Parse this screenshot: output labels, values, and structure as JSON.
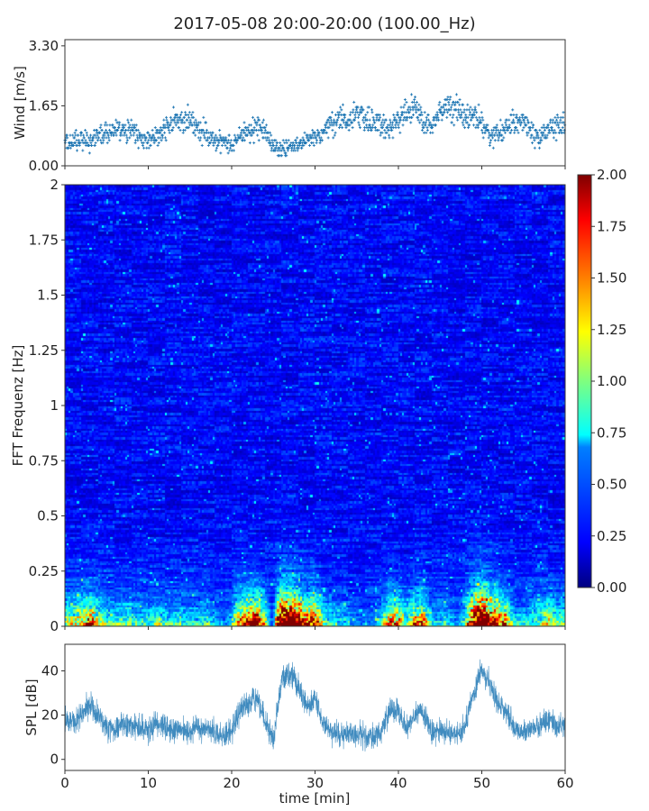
{
  "chart_data": [
    {
      "type": "scatter",
      "panel": "wind",
      "title": "2017-05-08 20:00-20:00 (100.00_Hz)",
      "xlabel": "",
      "ylabel": "Wind [m/s]",
      "xlim": [
        0,
        60
      ],
      "ylim": [
        0,
        3.47
      ],
      "yticks": [
        "0.00",
        "1.65",
        "3.30"
      ],
      "ytick_values": [
        0,
        1.65,
        3.3
      ],
      "xtick_values": [
        0,
        10,
        20,
        30,
        40,
        50,
        60
      ],
      "marker": "+",
      "color": "#1f77b4",
      "x_minutes_step": 1,
      "wind_per_minute": [
        0.6,
        0.65,
        0.7,
        0.7,
        0.8,
        0.9,
        1.0,
        0.9,
        1.0,
        0.75,
        0.7,
        0.8,
        1.0,
        1.2,
        1.3,
        1.2,
        1.0,
        0.9,
        0.7,
        0.7,
        0.6,
        0.8,
        0.9,
        1.1,
        1.0,
        0.5,
        0.45,
        0.5,
        0.6,
        0.7,
        0.8,
        1.0,
        1.1,
        1.3,
        1.2,
        1.4,
        1.3,
        1.2,
        1.1,
        1.0,
        1.3,
        1.4,
        1.6,
        1.2,
        1.1,
        1.5,
        1.6,
        1.5,
        1.3,
        1.4,
        1.2,
        0.8,
        0.9,
        1.1,
        1.2,
        1.2,
        0.9,
        0.7,
        1.0,
        1.1
      ]
    },
    {
      "type": "heatmap",
      "panel": "spectrogram",
      "xlabel": "",
      "ylabel": "FFT Frequenz [Hz]",
      "xlim": [
        0,
        60
      ],
      "ylim": [
        0,
        2
      ],
      "yticks": [
        "0",
        "0.25",
        "0.5",
        "0.75",
        "1",
        "1.25",
        "1.5",
        "1.75",
        "2"
      ],
      "ytick_values": [
        0,
        0.25,
        0.5,
        0.75,
        1,
        1.25,
        1.5,
        1.75,
        2
      ],
      "xtick_values": [
        0,
        10,
        20,
        30,
        40,
        50,
        60
      ],
      "colormap": "jet",
      "zlim": [
        0,
        2
      ],
      "background_level": 0.25,
      "low_band_peak_minutes": [
        [
          20,
          30
        ],
        [
          38,
          48
        ],
        [
          49,
          55
        ]
      ],
      "colorbar_ticks": [
        "0.00",
        "0.25",
        "0.50",
        "0.75",
        "1.00",
        "1.25",
        "1.50",
        "1.75",
        "2.00"
      ],
      "colorbar_tick_values": [
        0,
        0.25,
        0.5,
        0.75,
        1,
        1.25,
        1.5,
        1.75,
        2
      ]
    },
    {
      "type": "line",
      "panel": "spl",
      "xlabel": "time [min]",
      "ylabel": "SPL [dB]",
      "xlim": [
        0,
        60
      ],
      "ylim": [
        -5,
        52
      ],
      "yticks": [
        "0",
        "20",
        "40"
      ],
      "ytick_values": [
        0,
        20,
        40
      ],
      "xticks": [
        "0",
        "10",
        "20",
        "30",
        "40",
        "50",
        "60"
      ],
      "xtick_values": [
        0,
        10,
        20,
        30,
        40,
        50,
        60
      ],
      "color": "#1f77b4",
      "spl_per_minute": [
        18,
        17,
        20,
        25,
        20,
        14,
        14,
        16,
        15,
        14,
        13,
        16,
        14,
        13,
        14,
        13,
        14,
        14,
        12,
        11,
        13,
        22,
        25,
        28,
        18,
        8,
        36,
        39,
        33,
        24,
        28,
        16,
        13,
        12,
        12,
        11,
        10,
        10,
        13,
        22,
        22,
        14,
        21,
        22,
        12,
        13,
        13,
        11,
        15,
        30,
        41,
        33,
        25,
        22,
        13,
        13,
        14,
        15,
        19,
        15
      ]
    }
  ]
}
